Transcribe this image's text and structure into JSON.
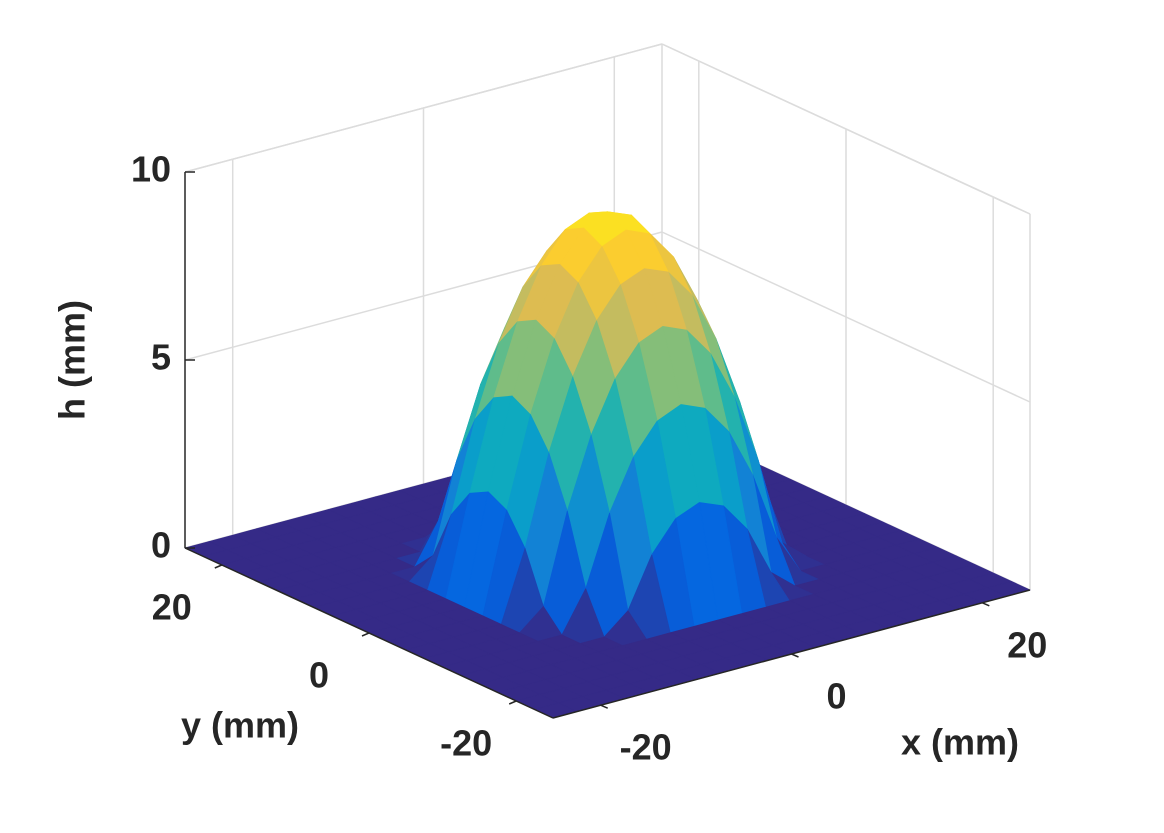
{
  "chart_data": {
    "type": "surface",
    "xlabel": "x (mm)",
    "ylabel": "y (mm)",
    "zlabel": "h (mm)",
    "x": [
      -25,
      -22.5,
      -20,
      -17.5,
      -15,
      -12.5,
      -10,
      -7.5,
      -5,
      -2.5,
      0,
      2.5,
      5,
      7.5,
      10,
      12.5,
      15,
      17.5,
      20,
      22.5,
      25
    ],
    "y": [
      -25,
      -22.5,
      -20,
      -17.5,
      -15,
      -12.5,
      -10,
      -7.5,
      -5,
      -2.5,
      0,
      2.5,
      5,
      7.5,
      10,
      12.5,
      15,
      17.5,
      20,
      22.5,
      25
    ],
    "z": [
      [
        0,
        0,
        0,
        0,
        0,
        0,
        0,
        0,
        0,
        0,
        0,
        0,
        0,
        0,
        0,
        0,
        0,
        0,
        0,
        0,
        0
      ],
      [
        0,
        0,
        0,
        0,
        0,
        0,
        0,
        0,
        0,
        0,
        0,
        0,
        0,
        0,
        0,
        0,
        0,
        0,
        0,
        0,
        0
      ],
      [
        0,
        0,
        0,
        0,
        0,
        0,
        0,
        0,
        0,
        0,
        0,
        0,
        0,
        0,
        0,
        0,
        0,
        0,
        0,
        0,
        0
      ],
      [
        0,
        0,
        0,
        0,
        0,
        0,
        0,
        0,
        0,
        0,
        0,
        0,
        0,
        0,
        0,
        0,
        0,
        0,
        0,
        0,
        0
      ],
      [
        0,
        0,
        0,
        0,
        0,
        0,
        0,
        0,
        0,
        0,
        0,
        0,
        0,
        0,
        0,
        0,
        0,
        0,
        0,
        0,
        0
      ],
      [
        0,
        0,
        0,
        0,
        0,
        0,
        0,
        0.53,
        1.85,
        2.64,
        2.9,
        2.64,
        1.85,
        0.53,
        0,
        0,
        0,
        0,
        0,
        0,
        0
      ],
      [
        0,
        0,
        0,
        0,
        0,
        0,
        1.06,
        2.9,
        4.22,
        5.01,
        5.28,
        5.01,
        4.22,
        2.9,
        1.06,
        0,
        0,
        0,
        0,
        0,
        0
      ],
      [
        0,
        0,
        0,
        0,
        0,
        0.53,
        2.9,
        4.75,
        6.07,
        6.86,
        7.13,
        6.86,
        6.07,
        4.75,
        2.9,
        0.53,
        0,
        0,
        0,
        0,
        0
      ],
      [
        0,
        0,
        0,
        0,
        0,
        1.85,
        4.22,
        6.07,
        7.39,
        8.18,
        8.44,
        8.18,
        7.39,
        6.07,
        4.22,
        1.85,
        0,
        0,
        0,
        0,
        0
      ],
      [
        0,
        0,
        0,
        0,
        0,
        2.64,
        5.01,
        6.86,
        8.18,
        8.97,
        9.24,
        8.97,
        8.18,
        6.86,
        5.01,
        2.64,
        0,
        0,
        0,
        0,
        0
      ],
      [
        0,
        0,
        0,
        0,
        0,
        2.9,
        5.28,
        7.13,
        8.44,
        9.24,
        9.5,
        9.24,
        8.44,
        7.13,
        5.28,
        2.9,
        0,
        0,
        0,
        0,
        0
      ],
      [
        0,
        0,
        0,
        0,
        0,
        2.64,
        5.01,
        6.86,
        8.18,
        8.97,
        9.24,
        8.97,
        8.18,
        6.86,
        5.01,
        2.64,
        0,
        0,
        0,
        0,
        0
      ],
      [
        0,
        0,
        0,
        0,
        0,
        1.85,
        4.22,
        6.07,
        7.39,
        8.18,
        8.44,
        8.18,
        7.39,
        6.07,
        4.22,
        1.85,
        0,
        0,
        0,
        0,
        0
      ],
      [
        0,
        0,
        0,
        0,
        0,
        0.53,
        2.9,
        4.75,
        6.07,
        6.86,
        7.13,
        6.86,
        6.07,
        4.75,
        2.9,
        0.53,
        0,
        0,
        0,
        0,
        0
      ],
      [
        0,
        0,
        0,
        0,
        0,
        0,
        1.06,
        2.9,
        4.22,
        5.01,
        5.28,
        5.01,
        4.22,
        2.9,
        1.06,
        0,
        0,
        0,
        0,
        0,
        0
      ],
      [
        0,
        0,
        0,
        0,
        0,
        0,
        0,
        0.53,
        1.85,
        2.64,
        2.9,
        2.64,
        1.85,
        0.53,
        0,
        0,
        0,
        0,
        0,
        0,
        0
      ],
      [
        0,
        0,
        0,
        0,
        0,
        0,
        0,
        0,
        0,
        0,
        0,
        0,
        0,
        0,
        0,
        0,
        0,
        0,
        0,
        0,
        0
      ],
      [
        0,
        0,
        0,
        0,
        0,
        0,
        0,
        0,
        0,
        0,
        0,
        0,
        0,
        0,
        0,
        0,
        0,
        0,
        0,
        0,
        0
      ],
      [
        0,
        0,
        0,
        0,
        0,
        0,
        0,
        0,
        0,
        0,
        0,
        0,
        0,
        0,
        0,
        0,
        0,
        0,
        0,
        0,
        0
      ],
      [
        0,
        0,
        0,
        0,
        0,
        0,
        0,
        0,
        0,
        0,
        0,
        0,
        0,
        0,
        0,
        0,
        0,
        0,
        0,
        0,
        0
      ],
      [
        0,
        0,
        0,
        0,
        0,
        0,
        0,
        0,
        0,
        0,
        0,
        0,
        0,
        0,
        0,
        0,
        0,
        0,
        0,
        0,
        0
      ]
    ],
    "xlim": [
      -25,
      25
    ],
    "ylim": [
      -25,
      25
    ],
    "zlim": [
      0,
      10
    ],
    "xticks": [
      -20,
      0,
      20
    ],
    "yticks": [
      -20,
      0,
      20
    ],
    "zticks": [
      0,
      5,
      10
    ],
    "colormap": "parula",
    "grid": true
  }
}
